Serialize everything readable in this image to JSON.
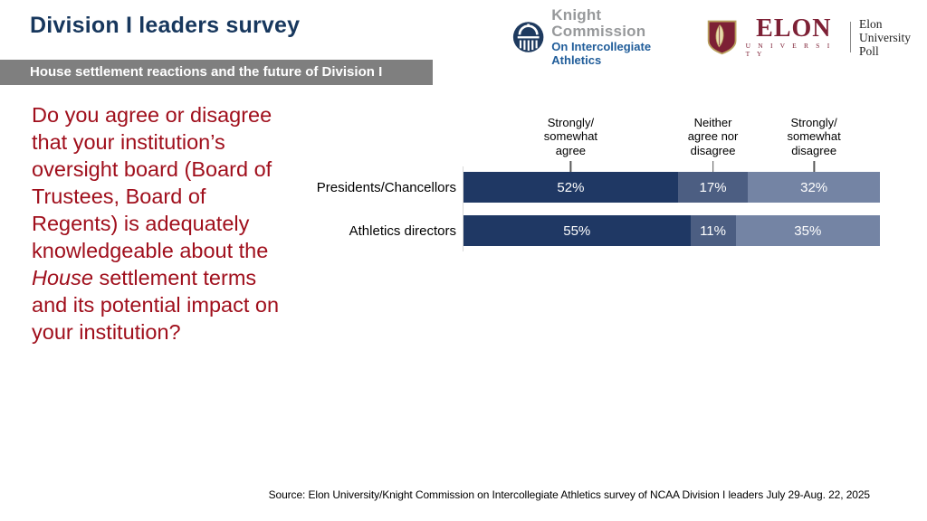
{
  "title": "Division I leaders survey",
  "banner": "House settlement reactions and the future of Division I",
  "logos": {
    "knight": {
      "name": "Knight Commission",
      "subtitle": "On Intercollegiate Athletics"
    },
    "elon": {
      "wordmark": "ELON",
      "university": "U N I V E R S I T Y",
      "poll_line1": "Elon University",
      "poll_line2": "Poll"
    }
  },
  "question": {
    "pre": "Do you agree or disagree that your institution’s oversight board (Board of Trustees, Board of Regents) is adequately knowledgeable about the ",
    "italic": "House",
    "post": " settlement terms and its potential impact on your institution?"
  },
  "chart_data": {
    "type": "bar",
    "variant": "horizontal-stacked",
    "categories": [
      "Presidents/Chancellors",
      "Athletics directors"
    ],
    "series": [
      {
        "name": "Strongly/somewhat agree",
        "color": "#1F3864",
        "values": [
          52,
          55
        ]
      },
      {
        "name": "Neither agree nor disagree",
        "color": "#4C5E82",
        "values": [
          17,
          11
        ]
      },
      {
        "name": "Strongly/somewhat disagree",
        "color": "#7484A4",
        "values": [
          32,
          35
        ]
      }
    ],
    "value_suffix": "%",
    "column_headers": [
      "Strongly/\nsomewhat\nagree",
      "Neither\nagree nor\ndisagree",
      "Strongly/\nsomewhat\ndisagree"
    ],
    "legend_position": "column-headers-above",
    "grid": false,
    "xlim": [
      0,
      101
    ]
  },
  "source": "Source: Elon University/Knight Commission on Intercollegiate Athletics survey of NCAA Division I leaders July 29-Aug. 22, 2025",
  "colors": {
    "title_navy": "#17375D",
    "banner_gray": "#7F7F7F",
    "question_red": "#A00F1C",
    "knight_blue": "#1F5C99",
    "knight_gray": "#97999B",
    "elon_maroon": "#7D2035",
    "elon_gold": "#B9A15F",
    "axis_line": "#D9D9D9"
  }
}
